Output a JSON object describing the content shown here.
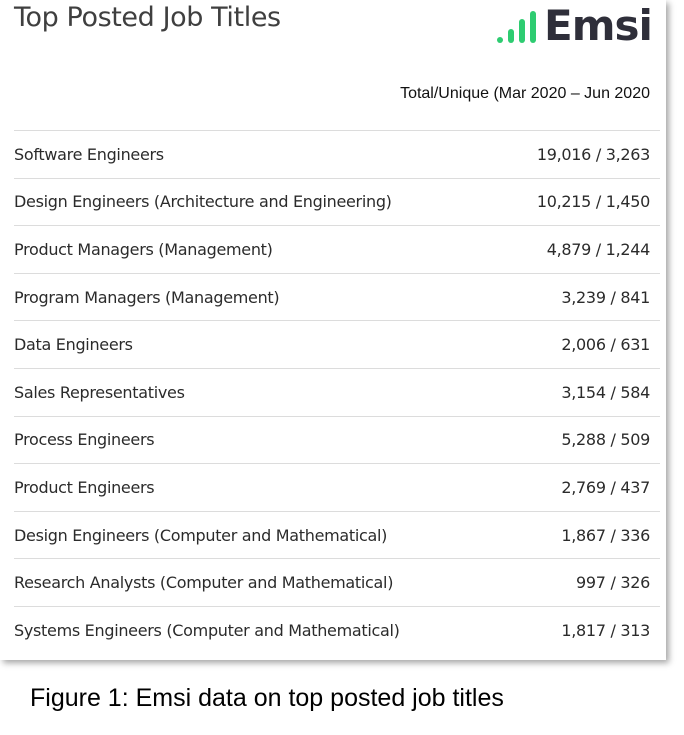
{
  "header": {
    "title": "Top Posted Job Titles",
    "logo_text": "Emsi",
    "colors": {
      "logo_bars": "#2ecc71",
      "logo_text": "#2f2f3a"
    }
  },
  "table": {
    "subheader": "Total/Unique (Mar 2020 – Jun 2020",
    "rows": [
      {
        "title": "Software Engineers",
        "value": "19,016 / 3,263"
      },
      {
        "title": "Design Engineers (Architecture and Engineering)",
        "value": "10,215 / 1,450"
      },
      {
        "title": "Product Managers (Management)",
        "value": "4,879 / 1,244"
      },
      {
        "title": "Program Managers (Management)",
        "value": "3,239 / 841"
      },
      {
        "title": "Data Engineers",
        "value": "2,006 / 631"
      },
      {
        "title": "Sales Representatives",
        "value": "3,154 / 584"
      },
      {
        "title": "Process Engineers",
        "value": "5,288 / 509"
      },
      {
        "title": "Product Engineers",
        "value": "2,769 / 437"
      },
      {
        "title": "Design Engineers (Computer and Mathematical)",
        "value": "1,867 / 336"
      },
      {
        "title": "Research Analysts (Computer and Mathematical)",
        "value": "997 / 326"
      },
      {
        "title": "Systems Engineers (Computer and Mathematical)",
        "value": "1,817 / 313"
      }
    ]
  },
  "caption": "Figure 1: Emsi data on top posted job titles"
}
